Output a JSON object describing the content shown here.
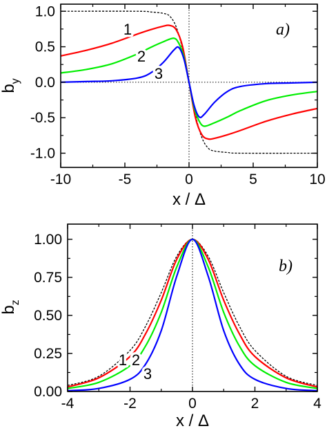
{
  "chart_data": [
    {
      "type": "line",
      "panel_label": "a)",
      "xlabel": "x / Δ",
      "ylabel": "b_y",
      "xlim": [
        -10,
        10
      ],
      "ylim": [
        -1.2,
        1.1
      ],
      "x_ticks": [
        -10,
        -5,
        0,
        5,
        10
      ],
      "x_tick_labels": [
        "-10",
        "-5",
        "0",
        "5",
        "10"
      ],
      "y_ticks": [
        -1.0,
        -0.5,
        0.0,
        0.5,
        1.0
      ],
      "y_tick_labels": [
        "-1.0",
        "-0.5",
        "0.0",
        "0.5",
        "1.0"
      ],
      "reference_lines": [
        {
          "axis": "x",
          "value": 0
        },
        {
          "axis": "y",
          "value": 0
        }
      ],
      "series": [
        {
          "name": "",
          "style": "dashed",
          "color": "#000000",
          "x": [
            -10,
            -4,
            -3,
            -2,
            -1.5,
            -1,
            -0.5,
            0,
            0.5,
            1,
            1.5,
            2,
            3,
            4,
            10
          ],
          "y": [
            1.0,
            1.0,
            0.99,
            0.97,
            0.93,
            0.78,
            0.46,
            0.0,
            -0.46,
            -0.78,
            -0.93,
            -0.97,
            -0.99,
            -1.0,
            -1.0
          ]
        },
        {
          "name": "1",
          "style": "solid",
          "color": "#ff0000",
          "x": [
            -10,
            -8,
            -6,
            -4,
            -3,
            -2,
            -1.5,
            -1,
            -0.5,
            0,
            0.5,
            1,
            1.5,
            2,
            3,
            4,
            6,
            8,
            10
          ],
          "y": [
            0.37,
            0.45,
            0.55,
            0.68,
            0.74,
            0.79,
            0.8,
            0.74,
            0.5,
            0.0,
            -0.5,
            -0.74,
            -0.8,
            -0.79,
            -0.74,
            -0.68,
            -0.55,
            -0.45,
            -0.37
          ]
        },
        {
          "name": "2",
          "style": "solid",
          "color": "#00ee00",
          "x": [
            -10,
            -8,
            -6,
            -4,
            -3,
            -2,
            -1.2,
            -0.8,
            -0.4,
            0,
            0.4,
            0.8,
            1.2,
            2,
            3,
            4,
            6,
            8,
            10
          ],
          "y": [
            0.13,
            0.18,
            0.26,
            0.4,
            0.49,
            0.57,
            0.62,
            0.55,
            0.36,
            0.0,
            -0.36,
            -0.55,
            -0.62,
            -0.57,
            -0.49,
            -0.4,
            -0.26,
            -0.18,
            -0.13
          ]
        },
        {
          "name": "3",
          "style": "solid",
          "color": "#0000ff",
          "x": [
            -10,
            -8,
            -6,
            -4,
            -3,
            -2,
            -1.2,
            -0.8,
            -0.4,
            0,
            0.4,
            0.8,
            1.2,
            2,
            3,
            4,
            6,
            8,
            10
          ],
          "y": [
            0.0,
            0.01,
            0.02,
            0.06,
            0.13,
            0.28,
            0.45,
            0.49,
            0.33,
            0.0,
            -0.33,
            -0.49,
            -0.45,
            -0.28,
            -0.13,
            -0.06,
            -0.02,
            -0.01,
            0.0
          ]
        }
      ]
    },
    {
      "type": "line",
      "panel_label": "b)",
      "xlabel": "x / Δ",
      "ylabel": "b_z",
      "xlim": [
        -4,
        4
      ],
      "ylim": [
        0,
        1.1
      ],
      "x_ticks": [
        -4,
        -2,
        0,
        2,
        4
      ],
      "x_tick_labels": [
        "-4",
        "-2",
        "0",
        "2",
        "4"
      ],
      "y_ticks": [
        0.0,
        0.25,
        0.5,
        0.75,
        1.0
      ],
      "y_tick_labels": [
        "0.00",
        "0.25",
        "0.50",
        "0.75",
        "1.00"
      ],
      "reference_lines": [
        {
          "axis": "x",
          "value": 0
        }
      ],
      "series": [
        {
          "name": "",
          "style": "dashed",
          "color": "#000000",
          "x": [
            -4,
            -3,
            -2,
            -1.5,
            -1,
            -0.5,
            0,
            0.5,
            1,
            1.5,
            2,
            3,
            4
          ],
          "y": [
            0.04,
            0.1,
            0.27,
            0.43,
            0.65,
            0.89,
            1.0,
            0.89,
            0.65,
            0.43,
            0.27,
            0.1,
            0.04
          ]
        },
        {
          "name": "1",
          "style": "solid",
          "color": "#ff0000",
          "x": [
            -4,
            -3,
            -2,
            -1.5,
            -1,
            -0.5,
            0,
            0.5,
            1,
            1.5,
            2,
            3,
            4
          ],
          "y": [
            0.03,
            0.09,
            0.23,
            0.38,
            0.6,
            0.87,
            1.0,
            0.87,
            0.6,
            0.38,
            0.23,
            0.09,
            0.03
          ]
        },
        {
          "name": "2",
          "style": "solid",
          "color": "#00ee00",
          "x": [
            -4,
            -3,
            -2,
            -1.5,
            -1,
            -0.5,
            0,
            0.5,
            1,
            1.5,
            2,
            3,
            4
          ],
          "y": [
            0.02,
            0.06,
            0.17,
            0.3,
            0.52,
            0.82,
            1.0,
            0.82,
            0.52,
            0.3,
            0.17,
            0.06,
            0.02
          ]
        },
        {
          "name": "3",
          "style": "solid",
          "color": "#0000ff",
          "x": [
            -4,
            -3,
            -2,
            -1.5,
            -1,
            -0.5,
            0,
            0.5,
            1,
            1.5,
            2,
            3,
            4
          ],
          "y": [
            0.005,
            0.02,
            0.08,
            0.18,
            0.4,
            0.76,
            1.0,
            0.76,
            0.4,
            0.18,
            0.08,
            0.02,
            0.005
          ]
        }
      ]
    }
  ]
}
